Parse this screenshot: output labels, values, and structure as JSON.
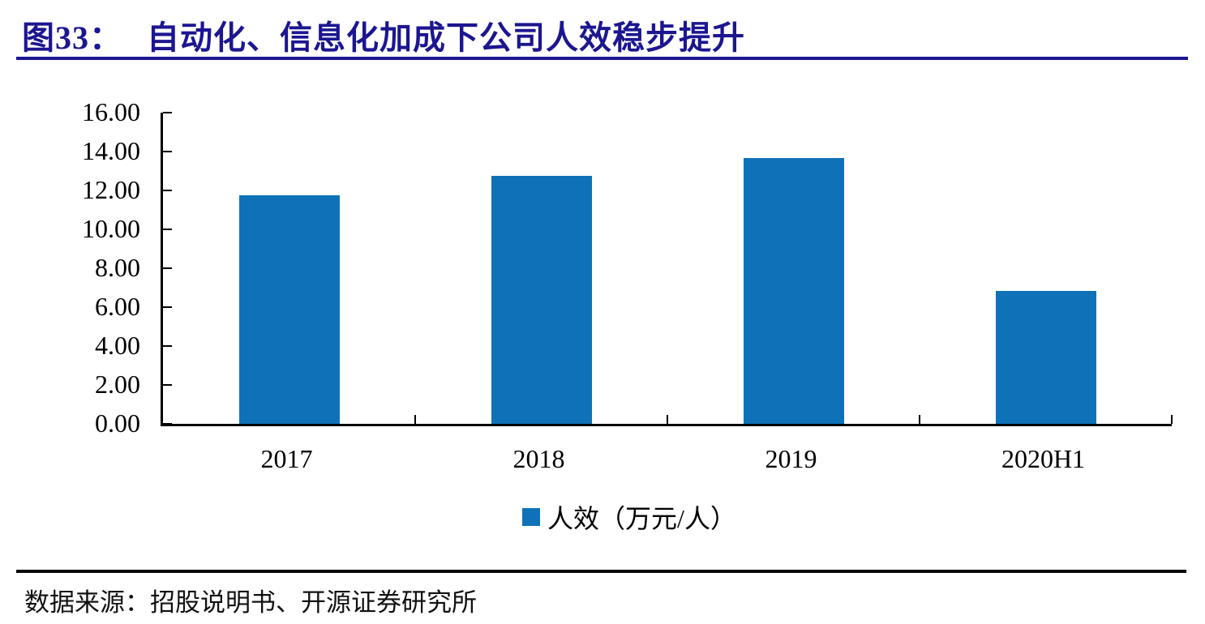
{
  "header": {
    "figure_label": "图33：",
    "title": "自动化、信息化加成下公司人效稳步提升"
  },
  "chart_data": {
    "type": "bar",
    "title": "自动化、信息化加成下公司人效稳步提升",
    "categories": [
      "2017",
      "2018",
      "2019",
      "2020H1"
    ],
    "values": [
      11.76,
      12.75,
      13.67,
      6.83
    ],
    "series_name": "人效（万元/人）",
    "xlabel": "",
    "ylabel": "",
    "ylim": [
      0,
      16
    ],
    "y_tick_step": 2,
    "y_tick_labels": [
      "16.00",
      "14.00",
      "12.00",
      "10.00",
      "8.00",
      "6.00",
      "4.00",
      "2.00",
      "0.00"
    ],
    "grid": false,
    "legend_position": "bottom",
    "bar_color": "#0f72b8"
  },
  "legend": {
    "label": "人效（万元/人）"
  },
  "footer": {
    "source": "数据来源：招股说明书、开源证券研究所"
  },
  "colors": {
    "title_navy": "#1c1690",
    "bar_blue": "#0f72b8",
    "axis_black": "#000000"
  }
}
